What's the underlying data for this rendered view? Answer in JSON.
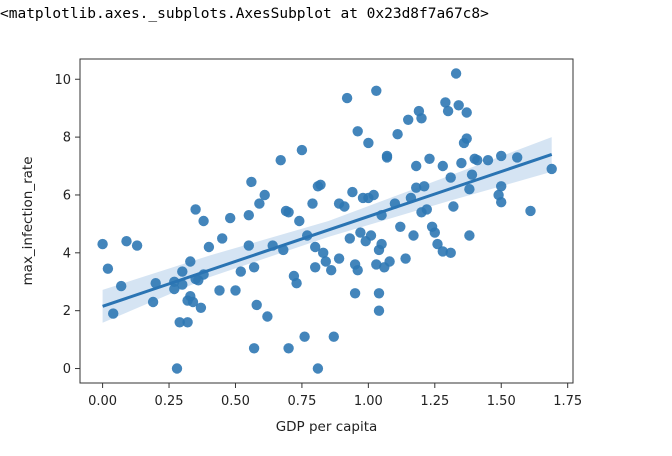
{
  "output_repr": "<matplotlib.axes._subplots.AxesSubplot at 0x23d8f7a67c8>",
  "chart_data": {
    "type": "scatter",
    "xlabel": "GDP per capita",
    "ylabel": "max_infection_rate",
    "xlim": [
      -0.085,
      1.77
    ],
    "ylim": [
      -0.5,
      10.7
    ],
    "xticks": [
      0.0,
      0.25,
      0.5,
      0.75,
      1.0,
      1.25,
      1.5,
      1.75
    ],
    "xtick_labels": [
      "0.00",
      "0.25",
      "0.50",
      "0.75",
      "1.00",
      "1.25",
      "1.50",
      "1.75"
    ],
    "yticks": [
      0,
      2,
      4,
      6,
      8,
      10
    ],
    "ytick_labels": [
      "0",
      "2",
      "4",
      "6",
      "8",
      "10"
    ],
    "grid": false,
    "point_color": "#2f78b4",
    "regression_line": {
      "x": [
        0.0,
        1.69
      ],
      "y": [
        2.15,
        7.4
      ],
      "color": "#2a74b3"
    },
    "confidence_band": {
      "x": [
        0.0,
        0.4,
        0.85,
        1.3,
        1.69
      ],
      "lower": [
        1.58,
        3.15,
        4.55,
        5.78,
        6.8
      ],
      "upper": [
        2.72,
        3.9,
        5.1,
        6.65,
        8.0
      ],
      "color": "#c7dbef"
    },
    "points": [
      [
        0.0,
        4.3
      ],
      [
        0.02,
        3.45
      ],
      [
        0.04,
        1.9
      ],
      [
        0.07,
        2.85
      ],
      [
        0.09,
        4.4
      ],
      [
        0.13,
        4.25
      ],
      [
        0.19,
        2.3
      ],
      [
        0.2,
        2.95
      ],
      [
        0.27,
        3.0
      ],
      [
        0.27,
        2.75
      ],
      [
        0.28,
        0.0
      ],
      [
        0.29,
        1.6
      ],
      [
        0.3,
        2.9
      ],
      [
        0.3,
        3.35
      ],
      [
        0.32,
        1.6
      ],
      [
        0.32,
        2.35
      ],
      [
        0.33,
        2.5
      ],
      [
        0.33,
        3.7
      ],
      [
        0.34,
        2.3
      ],
      [
        0.35,
        5.5
      ],
      [
        0.35,
        3.1
      ],
      [
        0.36,
        3.05
      ],
      [
        0.37,
        2.1
      ],
      [
        0.38,
        5.1
      ],
      [
        0.38,
        3.25
      ],
      [
        0.4,
        4.2
      ],
      [
        0.44,
        2.7
      ],
      [
        0.45,
        4.5
      ],
      [
        0.48,
        5.2
      ],
      [
        0.5,
        2.7
      ],
      [
        0.52,
        3.35
      ],
      [
        0.55,
        5.3
      ],
      [
        0.55,
        4.25
      ],
      [
        0.56,
        6.45
      ],
      [
        0.57,
        3.5
      ],
      [
        0.57,
        0.7
      ],
      [
        0.58,
        2.2
      ],
      [
        0.59,
        5.7
      ],
      [
        0.61,
        6.0
      ],
      [
        0.62,
        1.8
      ],
      [
        0.64,
        4.25
      ],
      [
        0.67,
        7.2
      ],
      [
        0.68,
        4.1
      ],
      [
        0.69,
        5.45
      ],
      [
        0.7,
        5.4
      ],
      [
        0.7,
        0.7
      ],
      [
        0.72,
        3.2
      ],
      [
        0.73,
        2.95
      ],
      [
        0.74,
        5.1
      ],
      [
        0.75,
        7.55
      ],
      [
        0.76,
        1.1
      ],
      [
        0.77,
        4.6
      ],
      [
        0.79,
        5.7
      ],
      [
        0.8,
        3.5
      ],
      [
        0.8,
        4.2
      ],
      [
        0.81,
        6.3
      ],
      [
        0.81,
        0.0
      ],
      [
        0.82,
        6.35
      ],
      [
        0.83,
        4.0
      ],
      [
        0.84,
        3.7
      ],
      [
        0.86,
        3.4
      ],
      [
        0.87,
        1.1
      ],
      [
        0.89,
        3.8
      ],
      [
        0.89,
        5.7
      ],
      [
        0.91,
        5.6
      ],
      [
        0.92,
        9.35
      ],
      [
        0.93,
        4.5
      ],
      [
        0.94,
        6.1
      ],
      [
        0.95,
        3.6
      ],
      [
        0.95,
        2.6
      ],
      [
        0.96,
        8.2
      ],
      [
        0.96,
        3.4
      ],
      [
        0.97,
        4.7
      ],
      [
        0.98,
        5.9
      ],
      [
        0.99,
        4.4
      ],
      [
        1.0,
        5.9
      ],
      [
        1.0,
        7.8
      ],
      [
        1.01,
        4.6
      ],
      [
        1.02,
        6.0
      ],
      [
        1.03,
        9.6
      ],
      [
        1.03,
        3.6
      ],
      [
        1.04,
        4.1
      ],
      [
        1.04,
        2.6
      ],
      [
        1.04,
        2.0
      ],
      [
        1.05,
        5.3
      ],
      [
        1.05,
        4.3
      ],
      [
        1.06,
        3.5
      ],
      [
        1.07,
        7.35
      ],
      [
        1.07,
        7.3
      ],
      [
        1.08,
        3.7
      ],
      [
        1.1,
        5.7
      ],
      [
        1.11,
        8.1
      ],
      [
        1.12,
        4.9
      ],
      [
        1.14,
        3.8
      ],
      [
        1.15,
        8.6
      ],
      [
        1.16,
        5.9
      ],
      [
        1.17,
        4.6
      ],
      [
        1.18,
        6.25
      ],
      [
        1.18,
        7.0
      ],
      [
        1.19,
        8.9
      ],
      [
        1.2,
        8.65
      ],
      [
        1.2,
        5.4
      ],
      [
        1.21,
        6.3
      ],
      [
        1.22,
        5.5
      ],
      [
        1.23,
        7.25
      ],
      [
        1.24,
        4.9
      ],
      [
        1.25,
        4.7
      ],
      [
        1.26,
        4.3
      ],
      [
        1.28,
        4.05
      ],
      [
        1.28,
        7.0
      ],
      [
        1.29,
        9.2
      ],
      [
        1.3,
        8.9
      ],
      [
        1.31,
        6.6
      ],
      [
        1.31,
        4.0
      ],
      [
        1.32,
        5.6
      ],
      [
        1.33,
        10.2
      ],
      [
        1.34,
        9.1
      ],
      [
        1.35,
        7.1
      ],
      [
        1.36,
        7.8
      ],
      [
        1.37,
        8.85
      ],
      [
        1.37,
        7.95
      ],
      [
        1.38,
        6.2
      ],
      [
        1.38,
        4.6
      ],
      [
        1.39,
        6.7
      ],
      [
        1.4,
        7.25
      ],
      [
        1.41,
        7.2
      ],
      [
        1.45,
        7.2
      ],
      [
        1.49,
        6.0
      ],
      [
        1.5,
        7.35
      ],
      [
        1.5,
        6.3
      ],
      [
        1.5,
        5.75
      ],
      [
        1.56,
        7.3
      ],
      [
        1.61,
        5.45
      ],
      [
        1.69,
        6.9
      ]
    ]
  }
}
